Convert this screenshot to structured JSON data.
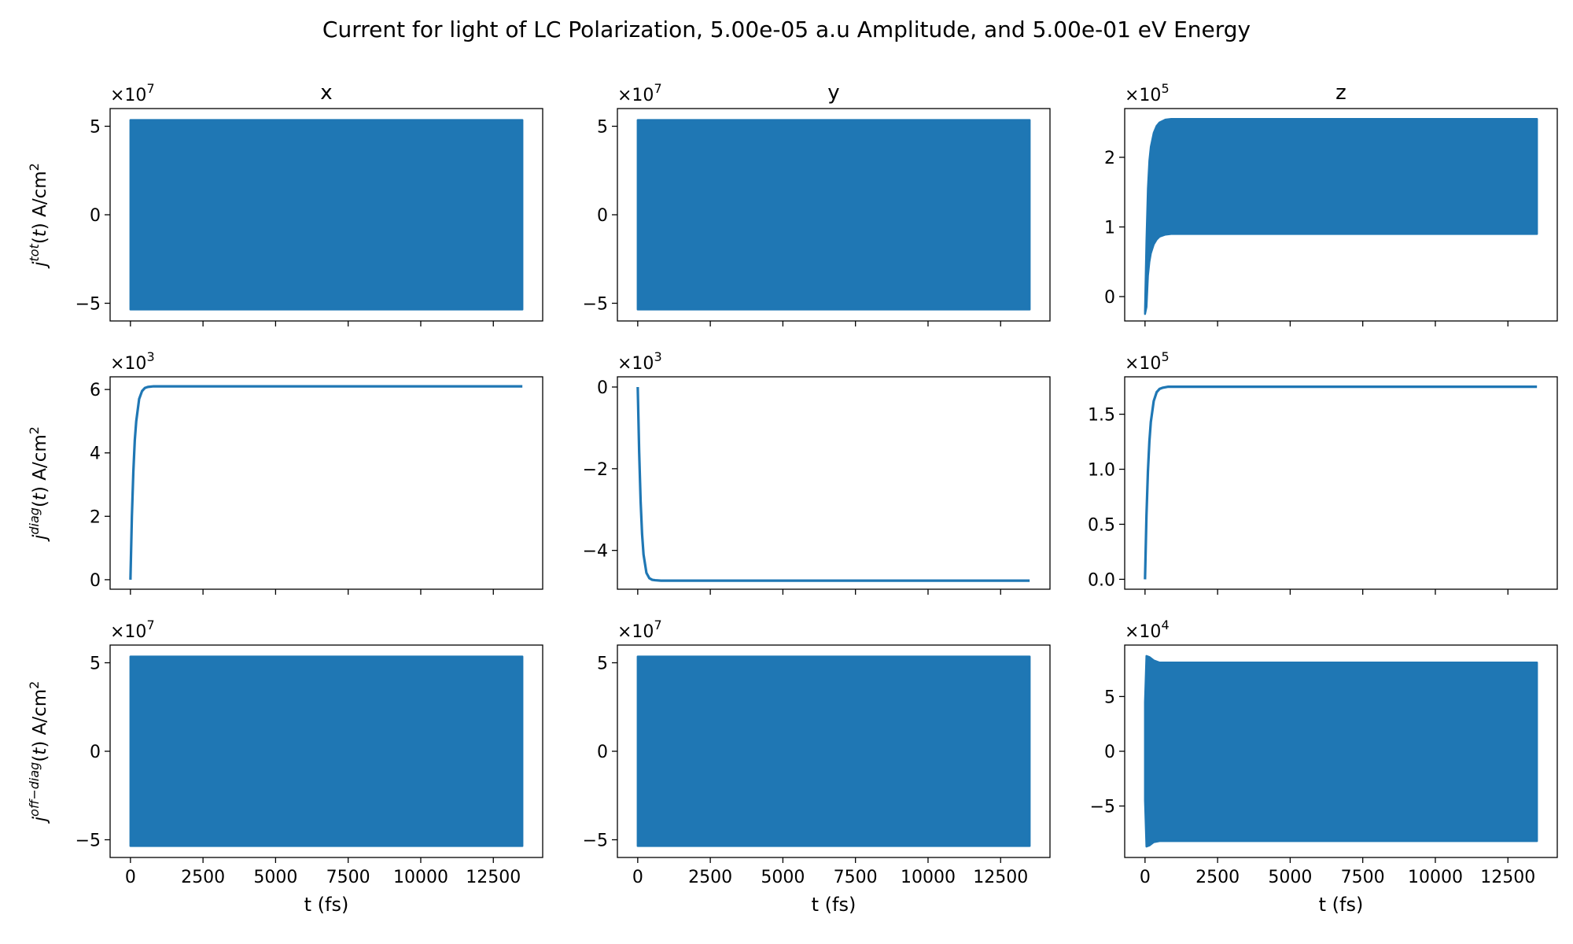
{
  "title": "Current for light of LC Polarization, 5.00e-05 a.u Amplitude, and 5.00e-01 eV Energy",
  "colors": {
    "series": "#1f77b4",
    "axes": "#000000"
  },
  "chart_data": [
    {
      "type": "area",
      "row": 0,
      "col": 0,
      "title": "x",
      "ylabel": "j^tot(t) A/cm^2",
      "xlabel": "",
      "scale_exponent": "7",
      "ylim": [
        -6.0,
        6.0
      ],
      "xlim": [
        -700,
        14200
      ],
      "yticks": [
        -5,
        0,
        5
      ],
      "ytick_labels": [
        "−5",
        "0",
        "5"
      ],
      "xticks": [
        0,
        2500,
        5000,
        7500,
        10000,
        12500
      ],
      "xtick_labels": [],
      "series": [
        {
          "x": [
            0,
            13500
          ],
          "upper": [
            5.35,
            5.35
          ],
          "lower": [
            -5.35,
            -5.35
          ]
        }
      ]
    },
    {
      "type": "area",
      "row": 0,
      "col": 1,
      "title": "y",
      "ylabel": "",
      "xlabel": "",
      "scale_exponent": "7",
      "ylim": [
        -6.0,
        6.0
      ],
      "xlim": [
        -700,
        14200
      ],
      "yticks": [
        -5,
        0,
        5
      ],
      "ytick_labels": [
        "−5",
        "0",
        "5"
      ],
      "xticks": [
        0,
        2500,
        5000,
        7500,
        10000,
        12500
      ],
      "xtick_labels": [],
      "series": [
        {
          "x": [
            0,
            13500
          ],
          "upper": [
            5.35,
            5.35
          ],
          "lower": [
            -5.35,
            -5.35
          ]
        }
      ]
    },
    {
      "type": "area",
      "row": 0,
      "col": 2,
      "title": "z",
      "ylabel": "",
      "xlabel": "",
      "scale_exponent": "5",
      "ylim": [
        -0.35,
        2.7
      ],
      "xlim": [
        -700,
        14200
      ],
      "yticks": [
        0,
        1,
        2
      ],
      "ytick_labels": [
        "0",
        "1",
        "2"
      ],
      "xticks": [
        0,
        2500,
        5000,
        7500,
        10000,
        12500
      ],
      "xtick_labels": [],
      "series": [
        {
          "x": [
            0,
            50,
            100,
            150,
            200,
            300,
            400,
            500,
            700,
            900,
            1200,
            13500
          ],
          "upper": [
            -0.2,
            0.8,
            1.55,
            1.95,
            2.15,
            2.35,
            2.45,
            2.5,
            2.54,
            2.55,
            2.55,
            2.55
          ],
          "lower": [
            -0.25,
            -0.15,
            0.3,
            0.5,
            0.62,
            0.75,
            0.82,
            0.86,
            0.89,
            0.9,
            0.9,
            0.9
          ]
        }
      ]
    },
    {
      "type": "line",
      "row": 1,
      "col": 0,
      "title": "",
      "ylabel": "j^diag(t) A/cm^2",
      "xlabel": "",
      "scale_exponent": "3",
      "ylim": [
        -0.3,
        6.4
      ],
      "xlim": [
        -700,
        14200
      ],
      "yticks": [
        0,
        2,
        4,
        6
      ],
      "ytick_labels": [
        "0",
        "2",
        "4",
        "6"
      ],
      "xticks": [
        0,
        2500,
        5000,
        7500,
        10000,
        12500
      ],
      "xtick_labels": [],
      "series": [
        {
          "x": [
            0,
            50,
            100,
            150,
            200,
            300,
            400,
            500,
            600,
            800,
            1000,
            13500
          ],
          "y": [
            0,
            2.0,
            3.4,
            4.4,
            5.0,
            5.7,
            5.95,
            6.05,
            6.08,
            6.1,
            6.1,
            6.1
          ]
        }
      ]
    },
    {
      "type": "line",
      "row": 1,
      "col": 1,
      "title": "",
      "ylabel": "",
      "xlabel": "",
      "scale_exponent": "3",
      "ylim": [
        -4.95,
        0.25
      ],
      "xlim": [
        -700,
        14200
      ],
      "yticks": [
        -4,
        -2,
        0
      ],
      "ytick_labels": [
        "−4",
        "−2",
        "0"
      ],
      "xticks": [
        0,
        2500,
        5000,
        7500,
        10000,
        12500
      ],
      "xtick_labels": [],
      "series": [
        {
          "x": [
            0,
            50,
            100,
            150,
            200,
            300,
            400,
            500,
            600,
            800,
            1000,
            13500
          ],
          "y": [
            0,
            -1.6,
            -2.8,
            -3.6,
            -4.1,
            -4.55,
            -4.68,
            -4.72,
            -4.73,
            -4.74,
            -4.74,
            -4.74
          ]
        }
      ]
    },
    {
      "type": "line",
      "row": 1,
      "col": 2,
      "title": "",
      "ylabel": "",
      "xlabel": "",
      "scale_exponent": "5",
      "ylim": [
        -0.09,
        1.84
      ],
      "xlim": [
        -700,
        14200
      ],
      "yticks": [
        0,
        0.5,
        1.0,
        1.5
      ],
      "ytick_labels": [
        "0.0",
        "0.5",
        "1.0",
        "1.5"
      ],
      "xticks": [
        0,
        2500,
        5000,
        7500,
        10000,
        12500
      ],
      "xtick_labels": [],
      "series": [
        {
          "x": [
            0,
            50,
            100,
            150,
            200,
            300,
            400,
            500,
            600,
            800,
            1000,
            13500
          ],
          "y": [
            0,
            0.58,
            0.98,
            1.25,
            1.43,
            1.62,
            1.7,
            1.73,
            1.74,
            1.75,
            1.75,
            1.75
          ]
        }
      ]
    },
    {
      "type": "area",
      "row": 2,
      "col": 0,
      "title": "",
      "ylabel": "j^off-diag(t) A/cm^2",
      "xlabel": "t (fs)",
      "scale_exponent": "7",
      "ylim": [
        -6.0,
        6.0
      ],
      "xlim": [
        -700,
        14200
      ],
      "yticks": [
        -5,
        0,
        5
      ],
      "ytick_labels": [
        "−5",
        "0",
        "5"
      ],
      "xticks": [
        0,
        2500,
        5000,
        7500,
        10000,
        12500
      ],
      "xtick_labels": [
        "0",
        "2500",
        "5000",
        "7500",
        "10000",
        "12500"
      ],
      "series": [
        {
          "x": [
            0,
            13500
          ],
          "upper": [
            5.35,
            5.35
          ],
          "lower": [
            -5.35,
            -5.35
          ]
        }
      ]
    },
    {
      "type": "area",
      "row": 2,
      "col": 1,
      "title": "",
      "ylabel": "",
      "xlabel": "t (fs)",
      "scale_exponent": "7",
      "ylim": [
        -6.0,
        6.0
      ],
      "xlim": [
        -700,
        14200
      ],
      "yticks": [
        -5,
        0,
        5
      ],
      "ytick_labels": [
        "−5",
        "0",
        "5"
      ],
      "xticks": [
        0,
        2500,
        5000,
        7500,
        10000,
        12500
      ],
      "xtick_labels": [
        "0",
        "2500",
        "5000",
        "7500",
        "10000",
        "12500"
      ],
      "series": [
        {
          "x": [
            0,
            13500
          ],
          "upper": [
            5.35,
            5.35
          ],
          "lower": [
            -5.35,
            -5.35
          ]
        }
      ]
    },
    {
      "type": "area",
      "row": 2,
      "col": 2,
      "title": "",
      "ylabel": "",
      "xlabel": "t (fs)",
      "scale_exponent": "4",
      "ylim": [
        -9.7,
        9.7
      ],
      "xlim": [
        -700,
        14200
      ],
      "yticks": [
        -5,
        0,
        5
      ],
      "ytick_labels": [
        "−5",
        "0",
        "5"
      ],
      "xticks": [
        0,
        2500,
        5000,
        7500,
        10000,
        12500
      ],
      "xtick_labels": [
        "0",
        "2500",
        "5000",
        "7500",
        "10000",
        "12500"
      ],
      "series": [
        {
          "x": [
            0,
            50,
            150,
            300,
            500,
            13500
          ],
          "upper": [
            4.5,
            8.7,
            8.6,
            8.3,
            8.1,
            8.1
          ],
          "lower": [
            -4.5,
            -8.7,
            -8.6,
            -8.3,
            -8.2,
            -8.2
          ]
        }
      ]
    }
  ]
}
